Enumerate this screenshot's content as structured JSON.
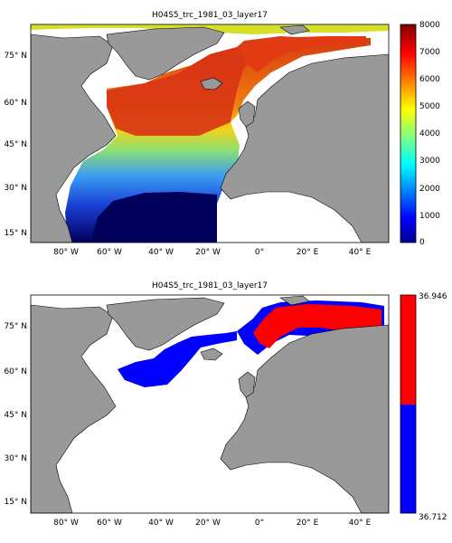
{
  "panels": [
    {
      "title": "H04S5_trc_1981_03_layer17",
      "x_ticks": [
        "80° W",
        "60° W",
        "40° W",
        "20° W",
        "0°",
        "20° E",
        "40° E"
      ],
      "y_ticks": [
        "75° N",
        "60° N",
        "45° N",
        "30° N",
        "15° N"
      ],
      "colorbar": {
        "type": "continuous",
        "colormap": "jet",
        "range": [
          0,
          8000
        ],
        "ticks": [
          "8000",
          "7000",
          "6000",
          "5000",
          "4000",
          "3000",
          "2000",
          "1000",
          "0"
        ]
      }
    },
    {
      "title": "H04S5_trc_1981_03_layer17",
      "x_ticks": [
        "80° W",
        "60° W",
        "40° W",
        "20° W",
        "0°",
        "20° E",
        "40° E"
      ],
      "y_ticks": [
        "75° N",
        "60° N",
        "45° N",
        "30° N",
        "15° N"
      ],
      "colorbar": {
        "type": "binary",
        "max_label": "36.946",
        "min_label": "36.712",
        "colors": [
          "#ff0000",
          "#0000ff"
        ]
      }
    }
  ]
}
